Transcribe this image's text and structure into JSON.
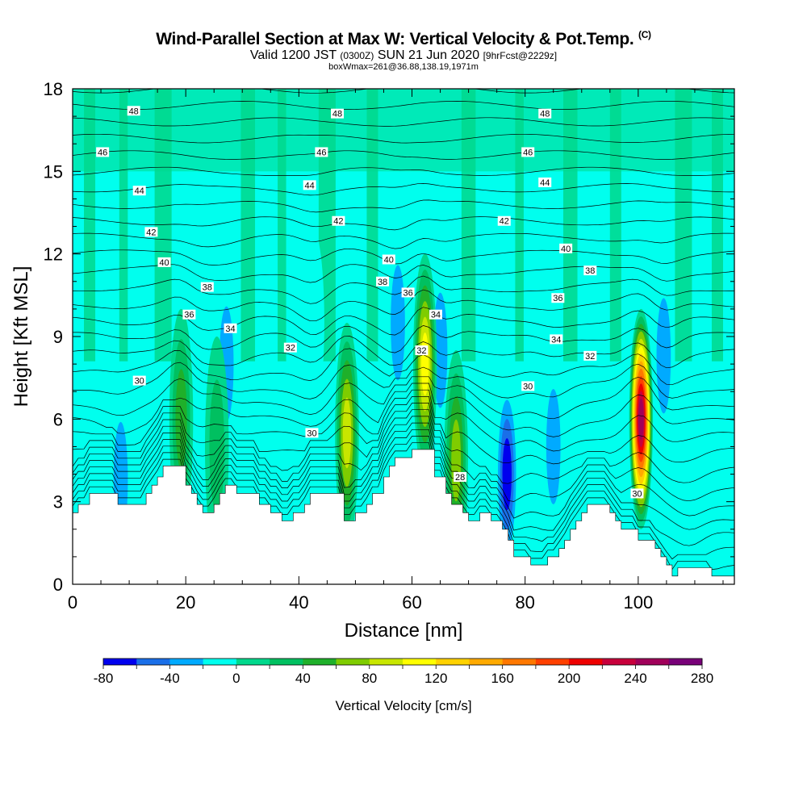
{
  "header": {
    "title": "Wind-Parallel Section at Max W: Vertical Velocity & Pot.Temp.",
    "title_mark": "(C)",
    "subtitle_main": "Valid 1200 JST",
    "subtitle_z": "(0300Z)",
    "subtitle_date": "SUN 21 Jun 2020",
    "subtitle_fcst": "[9hrFcst@2229z]",
    "subtitle2": "boxWmax=261@36.88,138.19,1971m"
  },
  "chart_data": {
    "type": "contour",
    "xlabel": "Distance [nm]",
    "ylabel": "Height [Kft MSL]",
    "xlim": [
      0,
      117
    ],
    "ylim": [
      0,
      18
    ],
    "xticks": [
      0,
      20,
      40,
      60,
      80,
      100
    ],
    "yticks": [
      0,
      3,
      6,
      9,
      12,
      15,
      18
    ],
    "colorbar": {
      "title": "Vertical Velocity [cm/s]",
      "ticks": [
        -80,
        -40,
        0,
        40,
        80,
        120,
        160,
        200,
        240,
        280
      ],
      "levels": [
        -80,
        -60,
        -40,
        -20,
        0,
        20,
        40,
        60,
        80,
        100,
        120,
        140,
        160,
        180,
        200,
        220,
        240,
        260,
        280
      ],
      "colors": [
        "#0000ee",
        "#1a6fe8",
        "#00aaff",
        "#00ffee",
        "#00d88c",
        "#00c060",
        "#1fb02a",
        "#7fcc00",
        "#c8e600",
        "#ffff00",
        "#ffd200",
        "#ffaa00",
        "#ff7800",
        "#ff4000",
        "#ee0000",
        "#c8003c",
        "#a0005a",
        "#780078"
      ]
    },
    "terrain": [
      [
        0,
        2.6
      ],
      [
        1,
        2.9
      ],
      [
        3,
        3.3
      ],
      [
        7,
        3.3
      ],
      [
        8,
        2.9
      ],
      [
        11,
        2.9
      ],
      [
        13,
        3.3
      ],
      [
        14,
        3.6
      ],
      [
        15,
        3.9
      ],
      [
        16,
        4.3
      ],
      [
        19,
        4.3
      ],
      [
        20,
        3.6
      ],
      [
        21,
        3.3
      ],
      [
        22,
        2.9
      ],
      [
        23,
        2.6
      ],
      [
        24,
        2.6
      ],
      [
        25,
        2.9
      ],
      [
        26,
        3.3
      ],
      [
        27,
        3.6
      ],
      [
        29,
        3.3
      ],
      [
        31,
        3.3
      ],
      [
        33,
        2.9
      ],
      [
        35,
        2.6
      ],
      [
        37,
        2.3
      ],
      [
        39,
        2.6
      ],
      [
        41,
        2.9
      ],
      [
        42,
        3.3
      ],
      [
        47,
        3.3
      ],
      [
        48,
        2.3
      ],
      [
        50,
        2.6
      ],
      [
        52,
        2.9
      ],
      [
        53,
        3.3
      ],
      [
        55,
        3.9
      ],
      [
        56,
        4.3
      ],
      [
        57,
        4.6
      ],
      [
        59,
        4.6
      ],
      [
        60,
        4.9
      ],
      [
        63,
        4.9
      ],
      [
        64,
        3.9
      ],
      [
        66,
        3.3
      ],
      [
        67,
        2.9
      ],
      [
        69,
        2.6
      ],
      [
        70,
        2.3
      ],
      [
        72,
        2.6
      ],
      [
        74,
        2.3
      ],
      [
        76,
        2.0
      ],
      [
        77,
        1.6
      ],
      [
        78,
        1.0
      ],
      [
        80,
        1.0
      ],
      [
        81,
        0.7
      ],
      [
        83,
        0.7
      ],
      [
        84,
        1.0
      ],
      [
        86,
        1.3
      ],
      [
        87,
        1.6
      ],
      [
        88,
        2.0
      ],
      [
        89,
        2.3
      ],
      [
        90,
        2.6
      ],
      [
        91,
        2.9
      ],
      [
        94,
        2.9
      ],
      [
        95,
        2.6
      ],
      [
        96,
        2.3
      ],
      [
        97,
        2.0
      ],
      [
        99,
        2.0
      ],
      [
        100,
        1.6
      ],
      [
        102,
        1.6
      ],
      [
        103,
        1.3
      ],
      [
        104,
        1.0
      ],
      [
        105,
        0.7
      ],
      [
        106,
        0.3
      ],
      [
        107,
        0.6
      ],
      [
        112,
        0.6
      ],
      [
        113,
        0.3
      ],
      [
        117,
        0.3
      ]
    ],
    "updrafts": [
      {
        "x": 100.5,
        "y": 6.0,
        "peak": 261
      },
      {
        "x": 62.3,
        "y": 8.0,
        "peak": 120
      },
      {
        "x": 48.5,
        "y": 5.5,
        "peak": 105
      },
      {
        "x": 67.8,
        "y": 4.5,
        "peak": 95
      },
      {
        "x": 19.2,
        "y": 6.0,
        "peak": 60
      },
      {
        "x": 25.5,
        "y": 5.0,
        "peak": 45
      }
    ],
    "downdrafts": [
      {
        "x": 76.8,
        "y": 4.0,
        "peak": -80
      },
      {
        "x": 27.2,
        "y": 8.0,
        "peak": -55
      },
      {
        "x": 57.5,
        "y": 9.5,
        "peak": -45
      },
      {
        "x": 65.0,
        "y": 8.5,
        "peak": -50
      },
      {
        "x": 85.0,
        "y": 5.0,
        "peak": -45
      },
      {
        "x": 8.5,
        "y": 3.8,
        "peak": -45
      },
      {
        "x": 104.5,
        "y": 8.3,
        "peak": -40
      },
      {
        "x": 109.0,
        "y": 1.5,
        "peak": -35
      },
      {
        "x": 42.5,
        "y": 9.5,
        "peak": -30
      },
      {
        "x": 23.0,
        "y": 8.5,
        "peak": -30
      }
    ],
    "contour_labels": [
      {
        "text": "48",
        "x": 10.8,
        "y": 17.2
      },
      {
        "text": "48",
        "x": 46.8,
        "y": 17.1
      },
      {
        "text": "48",
        "x": 83.5,
        "y": 17.1
      },
      {
        "text": "46",
        "x": 5.3,
        "y": 15.7
      },
      {
        "text": "46",
        "x": 44.0,
        "y": 15.7
      },
      {
        "text": "46",
        "x": 80.5,
        "y": 15.7
      },
      {
        "text": "44",
        "x": 11.8,
        "y": 14.3
      },
      {
        "text": "44",
        "x": 41.9,
        "y": 14.5
      },
      {
        "text": "44",
        "x": 83.5,
        "y": 14.6
      },
      {
        "text": "42",
        "x": 13.9,
        "y": 12.8
      },
      {
        "text": "42",
        "x": 47.0,
        "y": 13.2
      },
      {
        "text": "42",
        "x": 76.3,
        "y": 13.2
      },
      {
        "text": "40",
        "x": 16.2,
        "y": 11.7
      },
      {
        "text": "40",
        "x": 55.9,
        "y": 11.8
      },
      {
        "text": "40",
        "x": 87.2,
        "y": 12.2
      },
      {
        "text": "38",
        "x": 23.8,
        "y": 10.8
      },
      {
        "text": "38",
        "x": 54.8,
        "y": 11.0
      },
      {
        "text": "38",
        "x": 91.5,
        "y": 11.4
      },
      {
        "text": "36",
        "x": 20.6,
        "y": 9.8
      },
      {
        "text": "36",
        "x": 59.3,
        "y": 10.6
      },
      {
        "text": "36",
        "x": 85.8,
        "y": 10.4
      },
      {
        "text": "34",
        "x": 27.9,
        "y": 9.3
      },
      {
        "text": "34",
        "x": 64.2,
        "y": 9.8
      },
      {
        "text": "34",
        "x": 85.5,
        "y": 8.9
      },
      {
        "text": "32",
        "x": 38.5,
        "y": 8.6
      },
      {
        "text": "32",
        "x": 61.7,
        "y": 8.5
      },
      {
        "text": "32",
        "x": 91.5,
        "y": 8.3
      },
      {
        "text": "30",
        "x": 11.8,
        "y": 7.4
      },
      {
        "text": "30",
        "x": 42.3,
        "y": 5.5
      },
      {
        "text": "30",
        "x": 80.5,
        "y": 7.2
      },
      {
        "text": "28",
        "x": 68.5,
        "y": 3.9
      },
      {
        "text": "30",
        "x": 99.8,
        "y": 3.3
      }
    ]
  }
}
